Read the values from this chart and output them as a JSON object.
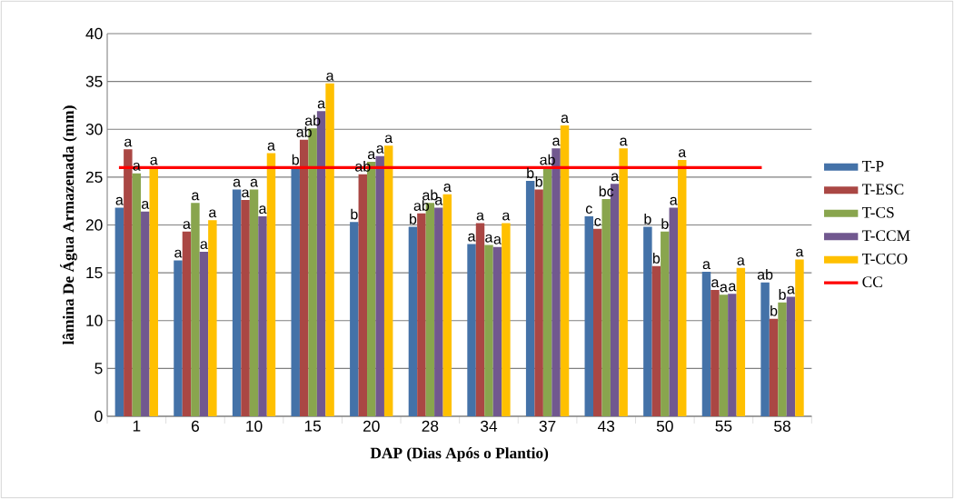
{
  "chart_data": {
    "type": "bar",
    "xlabel": "DAP (Dias Após o Plantio)",
    "ylabel": "lâmina De Água Armazenada (mm)",
    "categories": [
      "1",
      "6",
      "10",
      "15",
      "20",
      "28",
      "34",
      "37",
      "43",
      "50",
      "55",
      "58"
    ],
    "series": [
      {
        "name": "T-P",
        "color": "#4472a8",
        "values": [
          21.8,
          16.3,
          23.7,
          26.0,
          20.3,
          19.8,
          18.0,
          24.6,
          20.9,
          19.8,
          15.1,
          14.0
        ],
        "value_labels": [
          "a",
          "a",
          "a",
          "b",
          "b",
          "b",
          "a",
          "b",
          "c",
          "b",
          "a",
          "ab"
        ]
      },
      {
        "name": "T-ESC",
        "color": "#aa4744",
        "values": [
          27.9,
          19.3,
          22.6,
          28.9,
          25.3,
          21.2,
          20.2,
          23.7,
          19.6,
          15.7,
          13.2,
          10.2
        ],
        "value_labels": [
          "a",
          "a",
          "a",
          "ab",
          "ab",
          "ab",
          "a",
          "b",
          "c",
          "b",
          "a",
          "b"
        ]
      },
      {
        "name": "T-CS",
        "color": "#89a54e",
        "values": [
          25.4,
          22.3,
          23.7,
          30.1,
          26.6,
          22.3,
          17.9,
          26.0,
          22.7,
          19.3,
          12.7,
          11.9
        ],
        "value_labels": [
          "a",
          "a",
          "a",
          "ab",
          "a",
          "ab",
          "a",
          "ab",
          "bc",
          "b",
          "a",
          "b"
        ]
      },
      {
        "name": "T-CCM",
        "color": "#71588f",
        "values": [
          21.4,
          17.2,
          20.9,
          31.9,
          27.2,
          21.8,
          17.7,
          28.0,
          24.3,
          21.8,
          12.8,
          12.5
        ],
        "value_labels": [
          "a",
          "a",
          "a",
          "a",
          "a",
          "a",
          "a",
          "a",
          "a",
          "a",
          "a",
          "a"
        ]
      },
      {
        "name": "T-CCO",
        "color": "#ffc000",
        "values": [
          26.0,
          20.5,
          27.5,
          34.8,
          28.3,
          23.2,
          20.2,
          30.4,
          28.0,
          26.8,
          15.5,
          16.4
        ],
        "value_labels": [
          "a",
          "a",
          "a",
          "a",
          "a",
          "a",
          "a",
          "a",
          "a",
          "a",
          "a",
          "a"
        ]
      }
    ],
    "ref_lines": [
      {
        "axis": "y",
        "value": 26,
        "label": "CC",
        "color": "#ff0000"
      }
    ],
    "ylim": [
      0,
      40
    ],
    "yticks": [
      0,
      5,
      10,
      15,
      20,
      25,
      30,
      35,
      40
    ],
    "grid": "y",
    "legend": "right"
  }
}
